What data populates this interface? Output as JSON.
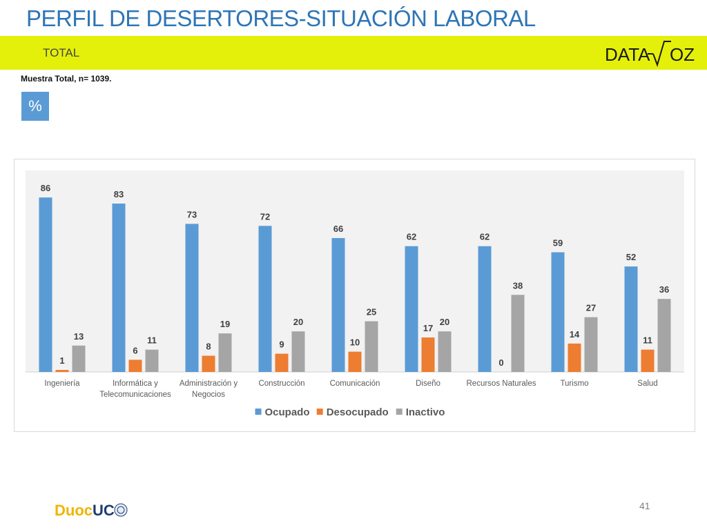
{
  "slide": {
    "title": "PERFIL DE DESERTORES-SITUACIÓN LABORAL",
    "subtitle": "TOTAL",
    "sample": "Muestra Total, n= 1039.",
    "unit_badge": "%",
    "logo_text": "DATA-VOZ",
    "footer_logo_text": "DuocUC",
    "page_number": "41",
    "band_color": "#e4f00a",
    "title_color": "#2e75b6"
  },
  "chart_data": {
    "type": "bar",
    "categories": [
      [
        "Ingeniería"
      ],
      [
        "Informática y",
        "Telecomunicaciones"
      ],
      [
        "Administración y",
        "Negocios"
      ],
      [
        "Construcción"
      ],
      [
        "Comunicación"
      ],
      [
        "Diseño"
      ],
      [
        "Recursos Naturales"
      ],
      [
        "Turismo"
      ],
      [
        "Salud"
      ]
    ],
    "series": [
      {
        "name": "Ocupado",
        "color": "#5b9bd5",
        "values": [
          86,
          83,
          73,
          72,
          66,
          62,
          62,
          59,
          52
        ]
      },
      {
        "name": "Desocupado",
        "color": "#ed7d31",
        "values": [
          1,
          6,
          8,
          9,
          10,
          17,
          0,
          14,
          11
        ]
      },
      {
        "name": "Inactivo",
        "color": "#a5a5a5",
        "values": [
          13,
          11,
          19,
          20,
          25,
          20,
          38,
          27,
          36
        ]
      }
    ],
    "ylim": [
      0,
      100
    ],
    "grid": false,
    "legend": "bottom",
    "data_labels": true
  }
}
